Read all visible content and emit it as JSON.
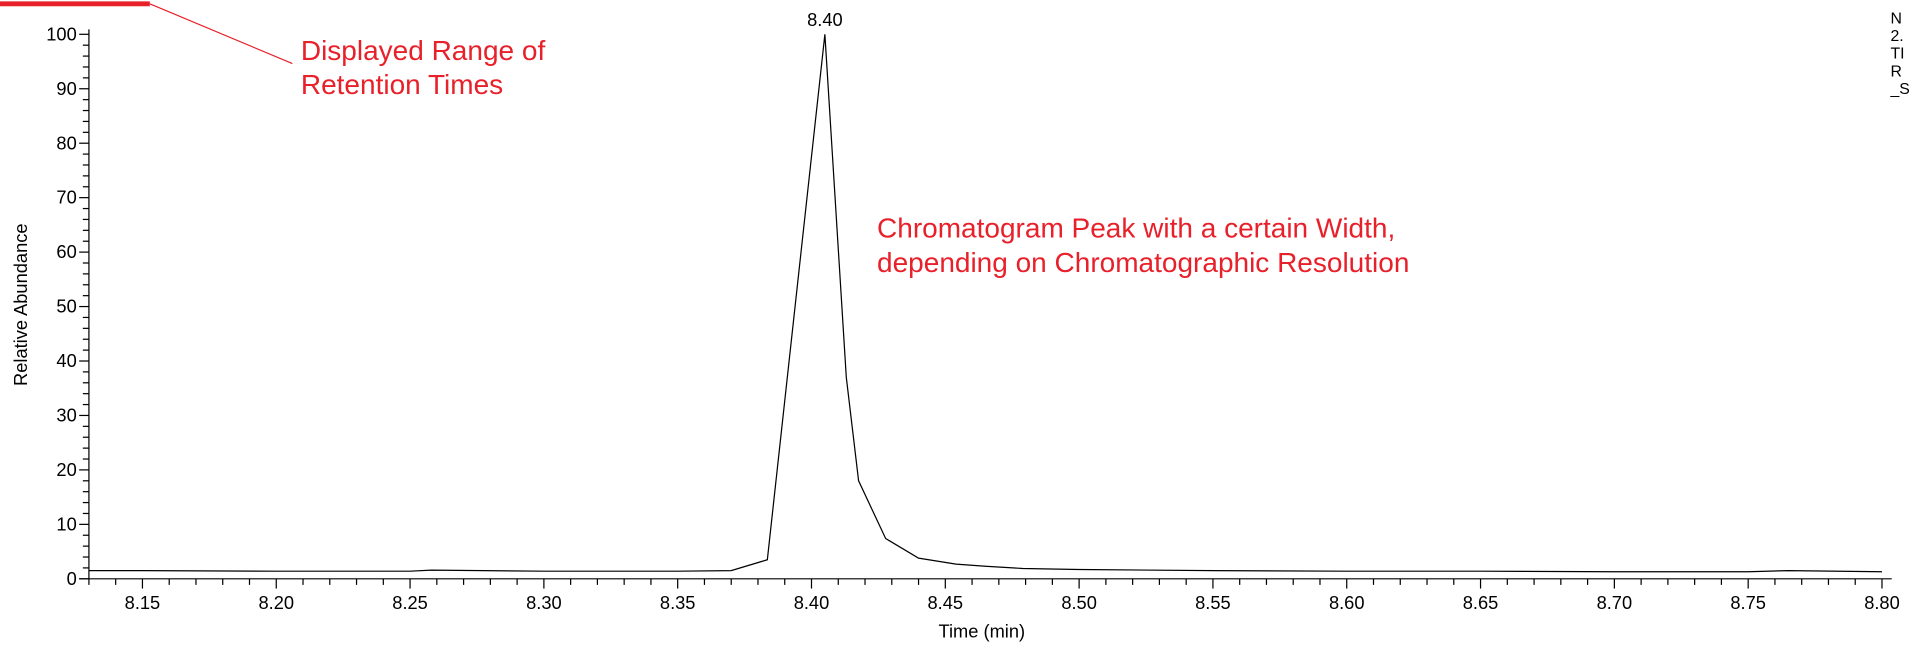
{
  "chart_data": {
    "type": "line",
    "x_label": "Time (min)",
    "y_label": "Relative Abundance",
    "xlim": [
      8.13,
      8.8
    ],
    "ylim": [
      0,
      100
    ],
    "xticks": [
      8.15,
      8.2,
      8.25,
      8.3,
      8.35,
      8.4,
      8.45,
      8.5,
      8.55,
      8.6,
      8.65,
      8.7,
      8.75,
      8.8
    ],
    "xticks_labels": [
      "8.15",
      "8.20",
      "8.25",
      "8.30",
      "8.35",
      "8.40",
      "8.45",
      "8.50",
      "8.55",
      "8.60",
      "8.65",
      "8.70",
      "8.75",
      "8.80"
    ],
    "xminorticks": [
      8.13,
      8.14,
      8.16,
      8.17,
      8.18,
      8.19,
      8.21,
      8.22,
      8.23,
      8.24,
      8.26,
      8.27,
      8.28,
      8.29,
      8.31,
      8.32,
      8.33,
      8.34,
      8.36,
      8.37,
      8.38,
      8.39,
      8.41,
      8.42,
      8.43,
      8.44,
      8.46,
      8.47,
      8.48,
      8.49,
      8.51,
      8.52,
      8.53,
      8.54,
      8.56,
      8.57,
      8.58,
      8.59,
      8.61,
      8.62,
      8.63,
      8.64,
      8.66,
      8.67,
      8.68,
      8.69,
      8.71,
      8.72,
      8.73,
      8.74,
      8.76,
      8.77,
      8.78,
      8.79
    ],
    "yticks": [
      0,
      10,
      20,
      30,
      40,
      50,
      60,
      70,
      80,
      90,
      100
    ],
    "yminorticks": [
      2,
      4,
      6,
      8,
      12,
      14,
      16,
      18,
      22,
      24,
      26,
      28,
      32,
      34,
      36,
      38,
      42,
      44,
      46,
      48,
      52,
      54,
      56,
      58,
      62,
      64,
      66,
      68,
      72,
      74,
      76,
      78,
      82,
      84,
      86,
      88,
      92,
      94,
      96,
      98
    ],
    "color": "#000000",
    "x": [
      8.13,
      8.15,
      8.2,
      8.25,
      8.258,
      8.3,
      8.35,
      8.37,
      8.3835,
      8.405,
      8.413,
      8.4176,
      8.4277,
      8.44,
      8.454,
      8.465,
      8.479,
      8.5,
      8.55,
      8.6,
      8.65,
      8.7,
      8.75,
      8.765,
      8.8
    ],
    "values": [
      1.5,
      1.5,
      1.4,
      1.4,
      1.6,
      1.4,
      1.4,
      1.5,
      3.5,
      100,
      37,
      18,
      7.4,
      3.8,
      2.7,
      2.3,
      1.9,
      1.7,
      1.5,
      1.4,
      1.4,
      1.3,
      1.3,
      1.5,
      1.3
    ],
    "annotations": [
      {
        "text": "8.40",
        "x": 8.405,
        "y": 100
      }
    ],
    "notes": [
      {
        "lines": [
          "Displayed Range of",
          "Retention Times"
        ],
        "color": "#e8202a"
      },
      {
        "lines": [
          "Chromatogram Peak with a certain Width,",
          "depending on Chromatographic Resolution"
        ],
        "color": "#e8202a"
      }
    ],
    "corner_text": [
      "N",
      "2.",
      "TI",
      "R",
      "_S"
    ]
  }
}
